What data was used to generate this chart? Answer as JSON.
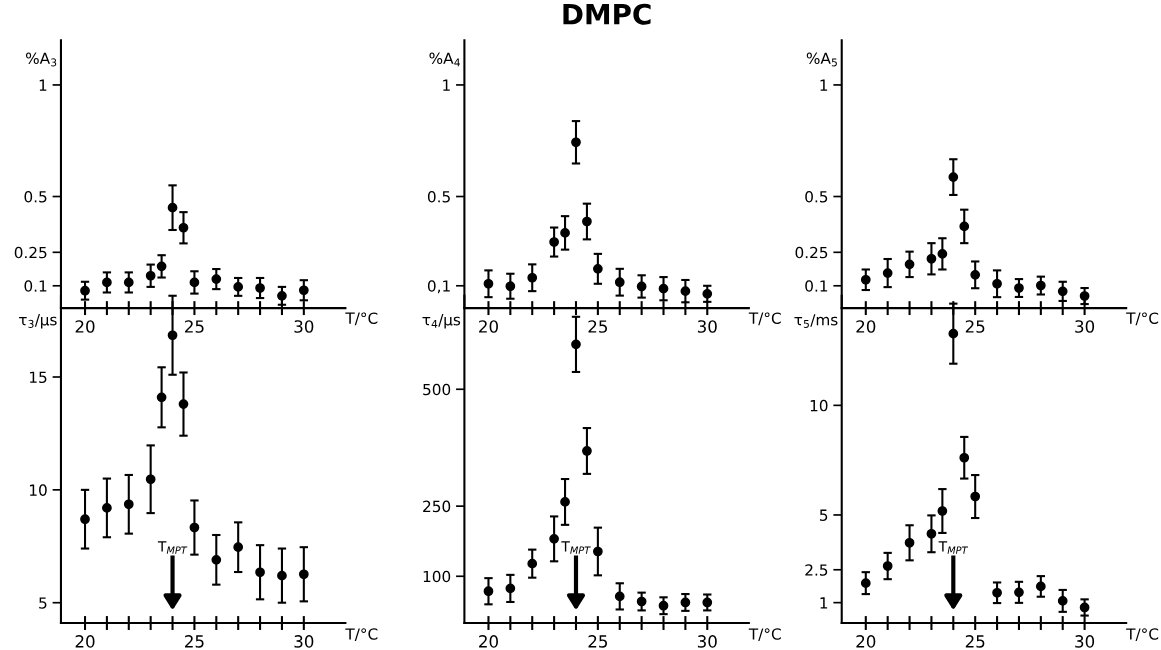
{
  "chart_data": [
    {
      "type": "scatter",
      "ylabel": "%A$_{3}$",
      "xlabel": "T/°C",
      "marker": "circle",
      "x": [
        20,
        21,
        22,
        23,
        23.5,
        24,
        24.5,
        25,
        26,
        27,
        28,
        29,
        30
      ],
      "values": [
        0.078,
        0.115,
        0.115,
        0.145,
        0.187,
        0.45,
        0.36,
        0.115,
        0.13,
        0.095,
        0.09,
        0.055,
        0.08
      ],
      "errors": [
        0.04,
        0.045,
        0.045,
        0.05,
        0.05,
        0.1,
        0.07,
        0.05,
        0.045,
        0.04,
        0.045,
        0.04,
        0.045
      ],
      "xlim": [
        18.9,
        31.9
      ],
      "xticks": [
        20,
        {
          "value": 21,
          "label": null
        },
        {
          "value": 22,
          "label": null
        },
        {
          "value": 23,
          "label": null
        },
        {
          "value": 24,
          "label": null
        },
        25,
        {
          "value": 26,
          "label": null
        },
        {
          "value": 27,
          "label": null
        },
        {
          "value": 28,
          "label": null
        },
        {
          "value": 29,
          "label": null
        },
        30
      ],
      "ylim": [
        0,
        1.2
      ],
      "yticks": [
        0.1,
        0.25,
        0.5,
        1
      ]
    },
    {
      "type": "scatter",
      "title": "DMPC",
      "ylabel": "%A$_{4}$",
      "xlabel": "T/°C",
      "marker": "circle",
      "x": [
        20,
        21,
        22,
        23,
        23.5,
        24,
        24.5,
        25,
        26,
        27,
        28,
        29,
        30
      ],
      "values": [
        0.109,
        0.098,
        0.136,
        0.296,
        0.337,
        0.743,
        0.388,
        0.176,
        0.116,
        0.097,
        0.087,
        0.076,
        0.064
      ],
      "errors": [
        0.06,
        0.056,
        0.06,
        0.065,
        0.075,
        0.095,
        0.08,
        0.067,
        0.06,
        0.05,
        0.052,
        0.05,
        0.036
      ],
      "xlim": [
        18.9,
        31.9
      ],
      "xticks": [
        20,
        {
          "value": 21,
          "label": null
        },
        {
          "value": 22,
          "label": null
        },
        {
          "value": 23,
          "label": null
        },
        {
          "value": 24,
          "label": null
        },
        25,
        {
          "value": 26,
          "label": null
        },
        {
          "value": 27,
          "label": null
        },
        {
          "value": 28,
          "label": null
        },
        {
          "value": 29,
          "label": null
        },
        30
      ],
      "ylim": [
        0,
        1.2
      ],
      "yticks": [
        {
          "value": 0.1,
          "label": "0,1"
        },
        0.5,
        1
      ]
    },
    {
      "type": "scatter",
      "ylabel": "%A$_{5}$",
      "xlabel": "T/°C",
      "marker": "circle",
      "x": [
        20,
        21,
        22,
        23,
        23.5,
        24,
        24.5,
        25,
        26,
        27,
        28,
        29,
        30
      ],
      "values": [
        0.127,
        0.157,
        0.196,
        0.221,
        0.243,
        0.587,
        0.366,
        0.149,
        0.109,
        0.09,
        0.101,
        0.075,
        0.054
      ],
      "errors": [
        0.046,
        0.063,
        0.057,
        0.07,
        0.07,
        0.08,
        0.075,
        0.06,
        0.06,
        0.04,
        0.04,
        0.043,
        0.036
      ],
      "xlim": [
        18.9,
        31.9
      ],
      "xticks": [
        20,
        {
          "value": 21,
          "label": null
        },
        {
          "value": 22,
          "label": null
        },
        {
          "value": 23,
          "label": null
        },
        {
          "value": 24,
          "label": null
        },
        25,
        {
          "value": 26,
          "label": null
        },
        {
          "value": 27,
          "label": null
        },
        {
          "value": 28,
          "label": null
        },
        {
          "value": 29,
          "label": null
        },
        30
      ],
      "ylim": [
        0,
        1.2
      ],
      "yticks": [
        0.1,
        0.25,
        0.5,
        1
      ]
    },
    {
      "type": "scatter",
      "ylabel": "τ$_{3}$/µs",
      "xlabel": "T/°C",
      "marker": "circle",
      "x": [
        20,
        21,
        22,
        23,
        23.5,
        24,
        24.5,
        25,
        26,
        27,
        28,
        29,
        30
      ],
      "values": [
        8.7,
        9.2,
        9.36,
        10.47,
        14.1,
        16.85,
        13.8,
        8.33,
        6.9,
        7.46,
        6.35,
        6.2,
        6.26
      ],
      "errors": [
        1.3,
        1.3,
        1.3,
        1.5,
        1.33,
        1.75,
        1.4,
        1.2,
        1.1,
        1.1,
        1.2,
        1.2,
        1.2
      ],
      "xlim": [
        18.9,
        31.9
      ],
      "xticks": [
        20,
        {
          "value": 21,
          "label": null
        },
        {
          "value": 22,
          "label": null
        },
        {
          "value": 23,
          "label": null
        },
        {
          "value": 24,
          "label": null
        },
        25,
        {
          "value": 26,
          "label": null
        },
        {
          "value": 27,
          "label": null
        },
        {
          "value": 28,
          "label": null
        },
        {
          "value": 29,
          "label": null
        },
        30
      ],
      "ylim": [
        4.1,
        18.6
      ],
      "yticks": [
        5,
        10,
        15
      ],
      "ref_lines": [
        {
          "axis": "x",
          "value": 24,
          "label": "T$_{MPT}$"
        }
      ]
    },
    {
      "type": "scatter",
      "ylabel": "τ$_{4}$/µs",
      "xlabel": "T/°C",
      "marker": "circle",
      "x": [
        20,
        21,
        22,
        23,
        23.5,
        24,
        24.5,
        25,
        26,
        27,
        28,
        29,
        30
      ],
      "values": [
        68,
        74,
        127,
        180,
        259,
        596,
        368,
        153,
        57,
        46,
        37,
        44,
        44
      ],
      "errors": [
        28,
        29,
        30,
        48,
        49,
        59,
        49,
        51,
        28,
        19,
        18,
        18,
        17
      ],
      "xlim": [
        18.9,
        31.9
      ],
      "xticks": [
        20,
        {
          "value": 21,
          "label": null
        },
        {
          "value": 22,
          "label": null
        },
        {
          "value": 23,
          "label": null
        },
        {
          "value": 24,
          "label": null
        },
        25,
        {
          "value": 26,
          "label": null
        },
        {
          "value": 27,
          "label": null
        },
        {
          "value": 28,
          "label": null
        },
        {
          "value": 29,
          "label": null
        },
        30
      ],
      "ylim": [
        0,
        700
      ],
      "yticks": [
        100,
        250,
        500
      ],
      "ref_lines": [
        {
          "axis": "x",
          "value": 24,
          "label": "T$_{MPT}$"
        }
      ]
    },
    {
      "type": "scatter",
      "ylabel": "τ$_{5}$/ms",
      "xlabel": "T/°C",
      "marker": "circle",
      "x": [
        20,
        21,
        22,
        23,
        23.5,
        24,
        24.5,
        25,
        26,
        27,
        28,
        29,
        30
      ],
      "values": [
        1.89,
        2.67,
        3.73,
        4.14,
        5.18,
        13.27,
        7.61,
        5.84,
        1.45,
        1.47,
        1.74,
        1.08,
        0.78
      ],
      "errors": [
        0.5,
        0.6,
        0.8,
        0.84,
        1.0,
        1.37,
        0.95,
        0.98,
        0.47,
        0.48,
        0.47,
        0.5,
        0.37
      ],
      "xlim": [
        18.9,
        31.9
      ],
      "xticks": [
        20,
        {
          "value": 21,
          "label": null
        },
        {
          "value": 22,
          "label": null
        },
        {
          "value": 23,
          "label": null
        },
        {
          "value": 24,
          "label": null
        },
        25,
        {
          "value": 26,
          "label": null
        },
        {
          "value": 27,
          "label": null
        },
        {
          "value": 28,
          "label": null
        },
        {
          "value": 29,
          "label": null
        },
        30
      ],
      "ylim": [
        0.07,
        15
      ],
      "yticks": [
        1,
        2.5,
        5,
        10
      ],
      "ref_lines": [
        {
          "axis": "x",
          "value": 24,
          "label": "T$_{MPT}$"
        }
      ]
    }
  ]
}
